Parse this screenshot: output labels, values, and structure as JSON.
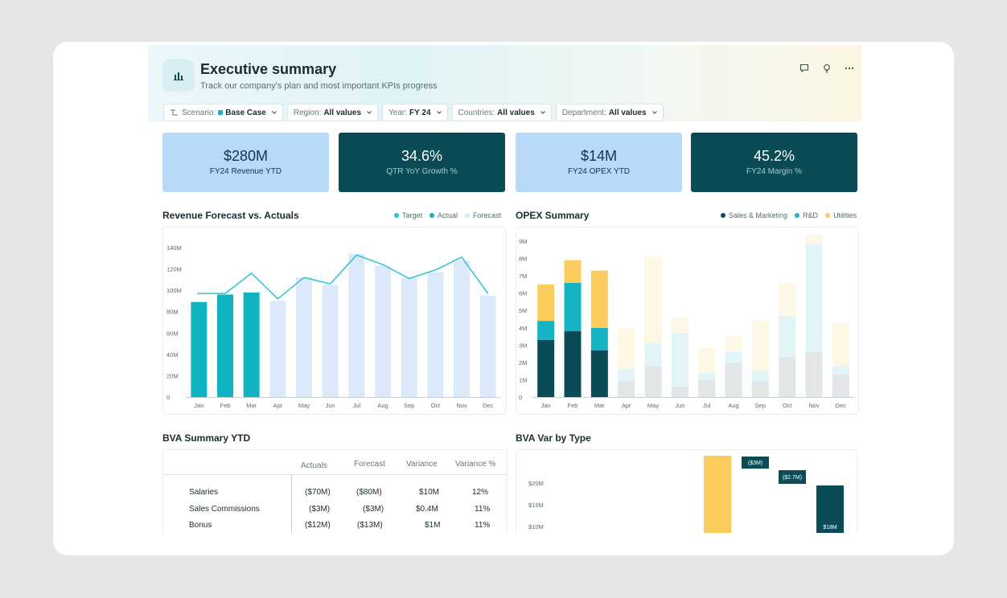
{
  "header": {
    "title": "Executive summary",
    "subtitle": "Track our company's plan and most important KPIs progress",
    "icons": [
      "chart-icon",
      "comment-icon",
      "lightbulb-icon",
      "more-icon"
    ]
  },
  "filters": [
    {
      "label": "Scenario:",
      "value": "Base Case",
      "dot_color": "#12b5c4"
    },
    {
      "label": "Region:",
      "value": "All values"
    },
    {
      "label": "Year:",
      "value": "FY 24"
    },
    {
      "label": "Countries:",
      "value": "All values"
    },
    {
      "label": "Department:",
      "value": "All values"
    }
  ],
  "kpis": [
    {
      "value": "$280M",
      "label": "FY24 Revenue YTD",
      "style": "light"
    },
    {
      "value": "34.6%",
      "label": "QTR YoY Growth %",
      "style": "dark"
    },
    {
      "value": "$14M",
      "label": "FY24 OPEX YTD",
      "style": "light"
    },
    {
      "value": "45.2%",
      "label": "FY24 Margin %",
      "style": "dark"
    }
  ],
  "revenue": {
    "title": "Revenue Forecast vs. Actuals",
    "legend": [
      {
        "name": "Target",
        "color": "#2ec2cf"
      },
      {
        "name": "Actual",
        "color": "#0fb3c1"
      },
      {
        "name": "Forecast",
        "color": "#dbe9fb"
      }
    ]
  },
  "opex": {
    "title": "OPEX Summary",
    "legend": [
      {
        "name": "Sales & Marketing",
        "color": "#0b4b55"
      },
      {
        "name": "R&D",
        "color": "#16b3c2"
      },
      {
        "name": "Utilities",
        "color": "#fbcd5f"
      }
    ]
  },
  "bva": {
    "title": "BVA Summary YTD",
    "columns": [
      "Actuals",
      "Forecast",
      "Variance",
      "Variance %"
    ],
    "rows": [
      {
        "name": "Salaries",
        "values": [
          "($70M)",
          "($80M)",
          "$10M",
          "12%"
        ]
      },
      {
        "name": "Sales Commissions",
        "values": [
          "($3M)",
          "($3M)",
          "$0.4M",
          "11%"
        ]
      },
      {
        "name": "Bonus",
        "values": [
          "($12M)",
          "($13M)",
          "$1M",
          "11%"
        ]
      }
    ]
  },
  "bva_var": {
    "title": "BVA Var by Type"
  },
  "chart_data": [
    {
      "type": "bar",
      "title": "Revenue Forecast vs. Actuals",
      "categories": [
        "Jan",
        "Feb",
        "Mar",
        "Apr",
        "May",
        "Jun",
        "Jul",
        "Aug",
        "Sep",
        "Oct",
        "Nov",
        "Dec"
      ],
      "ylim": [
        0,
        140
      ],
      "yticks": [
        "0",
        "20M",
        "40M",
        "60M",
        "80M",
        "100M",
        "120M",
        "140M"
      ],
      "series": [
        {
          "name": "Actual",
          "values": [
            89,
            96,
            98,
            null,
            null,
            null,
            null,
            null,
            null,
            null,
            null,
            null
          ],
          "color": "#0fb3c1"
        },
        {
          "name": "Forecast",
          "values": [
            null,
            null,
            null,
            90,
            112,
            105,
            134,
            123,
            112,
            117,
            128,
            95
          ],
          "color": "#dbe9fb"
        },
        {
          "name": "Target",
          "values": [
            97,
            97,
            116,
            92,
            112,
            106,
            133,
            124,
            111,
            119,
            131,
            97
          ],
          "color": "#2ec2cf",
          "kind": "line"
        }
      ]
    },
    {
      "type": "bar",
      "stacked": true,
      "title": "OPEX Summary",
      "categories": [
        "Jan",
        "Feb",
        "Mar",
        "Apr",
        "May",
        "Jun",
        "Jul",
        "Aug",
        "Sep",
        "Oct",
        "Nov",
        "Dec"
      ],
      "ylim": [
        0,
        9
      ],
      "yticks": [
        "0",
        "1M",
        "2M",
        "3M",
        "4M",
        "5M",
        "6M",
        "7M",
        "8M",
        "9M"
      ],
      "highlighted_months": 3,
      "series": [
        {
          "name": "Sales & Marketing",
          "values": [
            3.3,
            3.8,
            2.7,
            0.9,
            1.8,
            0.6,
            1.0,
            2.0,
            0.9,
            2.3,
            2.6,
            1.3
          ],
          "color": "#0b4b55",
          "faded_color": "#e3e6e6"
        },
        {
          "name": "R&D",
          "values": [
            1.1,
            2.8,
            1.3,
            0.7,
            1.3,
            3.1,
            0.4,
            0.6,
            0.6,
            2.4,
            6.2,
            0.5
          ],
          "color": "#16b3c2",
          "faded_color": "#e1f5f8"
        },
        {
          "name": "Utilities",
          "values": [
            2.1,
            1.3,
            3.3,
            2.4,
            5.0,
            0.9,
            1.4,
            0.9,
            2.9,
            1.9,
            0.6,
            2.5
          ],
          "color": "#fbcd5f",
          "faded_color": "#fdf7e5"
        }
      ]
    },
    {
      "type": "bar",
      "title": "BVA Var by Type",
      "yticks": [
        "$10M",
        "$15M",
        "$20M"
      ],
      "bars": [
        {
          "label": "",
          "color": "#fbcd5f"
        },
        {
          "label": "($3M)",
          "color": "#0b4b55"
        },
        {
          "label": "($2.7M)",
          "color": "#0b4b55"
        },
        {
          "label": "$18M",
          "color": "#0b4b55"
        }
      ]
    }
  ]
}
